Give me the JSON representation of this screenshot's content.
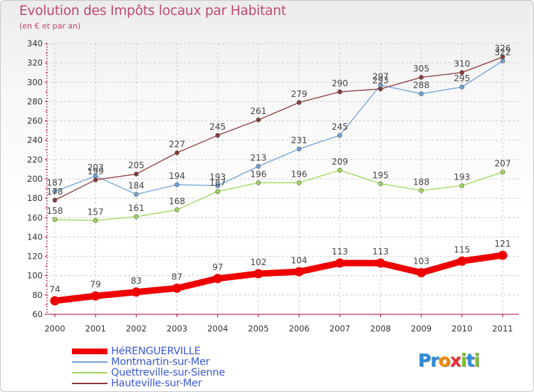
{
  "header": {
    "title": "Evolution des Impôts locaux par Habitant",
    "subtitle": "(en € et par an)"
  },
  "colors": {
    "title": "#c0486e",
    "axis": "#b0003a",
    "grid": "#cccccc",
    "legend_text": "#3b5bd6"
  },
  "logo": {
    "letters": [
      "P",
      "r",
      "o",
      "x",
      "i",
      "t",
      "i"
    ],
    "colors": [
      "#2d8bd8",
      "#2d8bd8",
      "#f28a00",
      "#e8303a",
      "#7bbf2a",
      "#2d8bd8",
      "#7bbf2a"
    ]
  },
  "chart_data": {
    "type": "line",
    "title": "Evolution des Impôts locaux par Habitant",
    "subtitle": "(en € et par an)",
    "xlabel": "",
    "ylabel": "",
    "x": [
      2000,
      2001,
      2002,
      2003,
      2004,
      2005,
      2006,
      2007,
      2008,
      2009,
      2010,
      2011
    ],
    "x_tick_labels": [
      "2000",
      "2001",
      "2002",
      "2003",
      "2004",
      "2005",
      "2006",
      "2007",
      "2008",
      "2009",
      "2010",
      "2011"
    ],
    "ylim": [
      60,
      340
    ],
    "y_ticks": [
      60,
      80,
      100,
      120,
      140,
      160,
      180,
      200,
      220,
      240,
      260,
      280,
      300,
      320,
      340
    ],
    "y_tick_labels": [
      "60",
      "80",
      "100",
      "120",
      "140",
      "160",
      "180",
      "200",
      "220",
      "240",
      "260",
      "280",
      "300",
      "320",
      "340"
    ],
    "grid": true,
    "legend_position": "bottom-left",
    "series": [
      {
        "name": "HéRENGUERVILLE",
        "color": "#ee0000",
        "values": [
          74,
          79,
          83,
          87,
          97,
          102,
          104,
          113,
          113,
          103,
          115,
          121
        ],
        "labels": [
          "74",
          "79",
          "83",
          "87",
          "97",
          "102",
          "104",
          "113",
          "113",
          "103",
          "115",
          "121"
        ]
      },
      {
        "name": "Montmartin-sur-Mer",
        "color": "#6fa3d8",
        "values": [
          187,
          203,
          184,
          194,
          193,
          213,
          231,
          245,
          297,
          288,
          295,
          322
        ],
        "labels": [
          "187",
          "203",
          "184",
          "194",
          "193",
          "213",
          "231",
          "245",
          "297",
          "288",
          "295",
          "322"
        ]
      },
      {
        "name": "Quettreville-sur-Sienne",
        "color": "#9ed85a",
        "values": [
          158,
          157,
          161,
          168,
          187,
          196,
          196,
          209,
          195,
          188,
          193,
          207
        ],
        "labels": [
          "158",
          "157",
          "161",
          "168",
          "187",
          "196",
          "196",
          "209",
          "195",
          "188",
          "193",
          "207"
        ]
      },
      {
        "name": "Hauteville-sur-Mer",
        "color": "#8a3a3a",
        "values": [
          178,
          199,
          205,
          227,
          245,
          261,
          279,
          290,
          293,
          305,
          310,
          326
        ],
        "labels": [
          "178",
          "199",
          "205",
          "227",
          "245",
          "261",
          "279",
          "290",
          "293",
          "305",
          "310",
          "326"
        ]
      }
    ]
  }
}
